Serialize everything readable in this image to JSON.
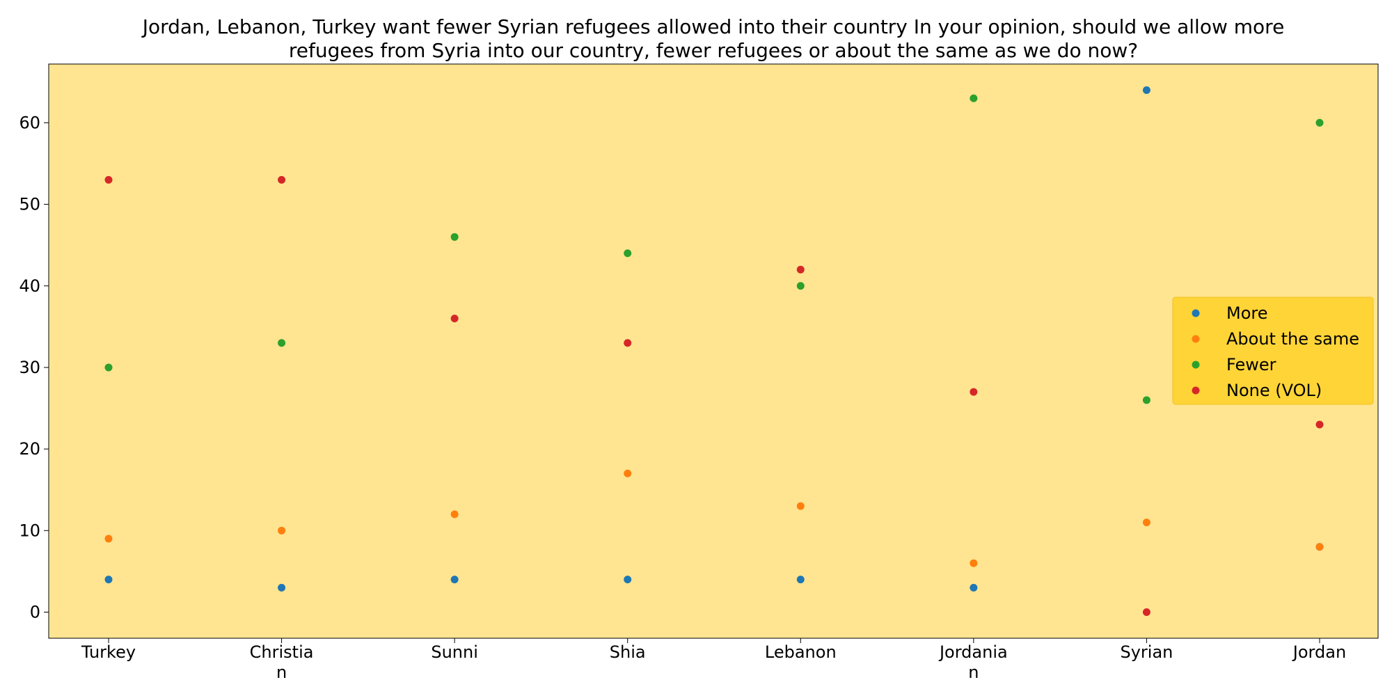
{
  "chart_data": {
    "type": "scatter",
    "title_lines": [
      "Jordan, Lebanon, Turkey want fewer Syrian refugees allowed into their country In your opinion, should we allow more",
      "refugees from Syria into our country, fewer refugees or about the same as we do now?"
    ],
    "categories": [
      "Turkey",
      "Christian",
      "Sunni",
      "Shia",
      "Lebanon",
      "Jordanian",
      "Syrian",
      "Jordan"
    ],
    "category_label_lines": [
      [
        "Turkey"
      ],
      [
        "Christia",
        "n"
      ],
      [
        "Sunni"
      ],
      [
        "Shia"
      ],
      [
        "Lebanon"
      ],
      [
        "Jordania",
        "n"
      ],
      [
        "Syrian"
      ],
      [
        "Jordan"
      ]
    ],
    "series": [
      {
        "name": "More",
        "color": "#1f77b4",
        "values": [
          4,
          3,
          4,
          4,
          4,
          3,
          64,
          8
        ]
      },
      {
        "name": "About the same",
        "color": "#ff7f0e",
        "values": [
          9,
          10,
          12,
          17,
          13,
          6,
          11,
          8
        ]
      },
      {
        "name": "Fewer",
        "color": "#2ca02c",
        "values": [
          30,
          33,
          46,
          44,
          40,
          63,
          26,
          60
        ]
      },
      {
        "name": "None (VOL)",
        "color": "#d62728",
        "values": [
          53,
          53,
          36,
          33,
          42,
          27,
          0,
          23
        ]
      }
    ],
    "y_ticks": [
      0,
      10,
      20,
      30,
      40,
      50,
      60
    ],
    "ylim": [
      -3.2,
      67.2
    ],
    "grid": false,
    "legend_position": "center-right",
    "plot_background": "#ffe591",
    "legend_background": "#ffd437"
  }
}
